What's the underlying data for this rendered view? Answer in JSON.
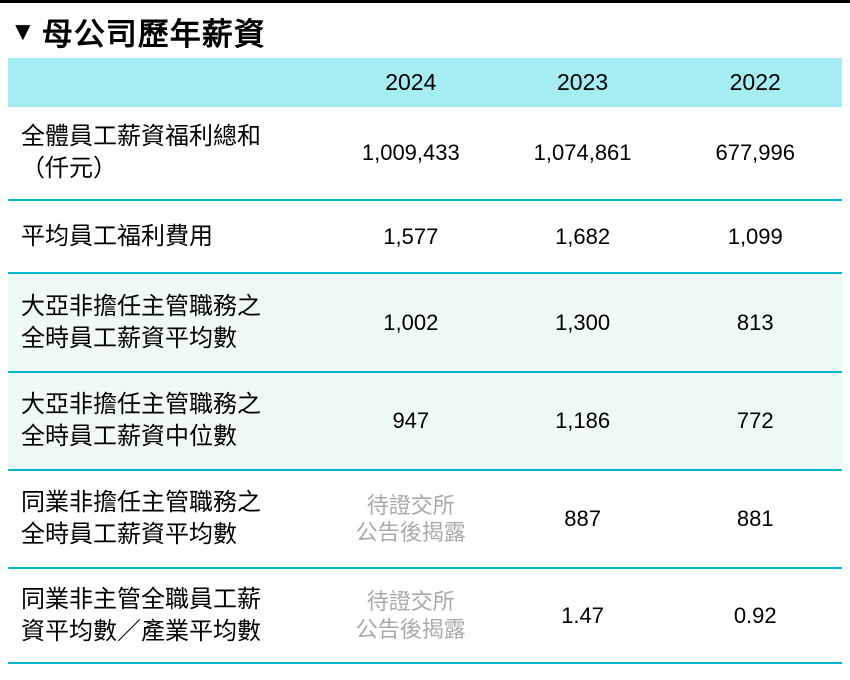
{
  "page": {
    "title_marker": "▼",
    "title": "母公司歷年薪資"
  },
  "table": {
    "columns": [
      "2024",
      "2023",
      "2022"
    ],
    "rows": [
      {
        "label": "全體員工薪資福利總和（仟元）",
        "label_line1": "全體員工薪資福利總和",
        "label_line2": "（仟元）",
        "v2024": "1,009,433",
        "v2023": "1,074,861",
        "v2022": "677,996",
        "shaded": false
      },
      {
        "label": "平均員工福利費用",
        "label_line1": "平均員工福利費用",
        "label_line2": "",
        "v2024": "1,577",
        "v2023": "1,682",
        "v2022": "1,099",
        "shaded": false
      },
      {
        "label": "大亞非擔任主管職務之全時員工薪資平均數",
        "label_line1": "大亞非擔任主管職務之",
        "label_line2": "全時員工薪資平均數",
        "v2024": "1,002",
        "v2023": "1,300",
        "v2022": "813",
        "shaded": true
      },
      {
        "label": "大亞非擔任主管職務之全時員工薪資中位數",
        "label_line1": "大亞非擔任主管職務之",
        "label_line2": "全時員工薪資中位數",
        "v2024": "947",
        "v2023": "1,186",
        "v2022": "772",
        "shaded": true
      },
      {
        "label": "同業非擔任主管職務之全時員工薪資平均數",
        "label_line1": "同業非擔任主管職務之",
        "label_line2": "全時員工薪資平均數",
        "v2024_note_line1": "待證交所",
        "v2024_note_line2": "公告後揭露",
        "v2023": "887",
        "v2022": "881",
        "shaded": false
      },
      {
        "label": "同業非主管全職員工薪資平均數／產業平均數",
        "label_line1": "同業非主管全職員工薪",
        "label_line2": "資平均數／產業平均數",
        "v2024_note_line1": "待證交所",
        "v2024_note_line2": "公告後揭露",
        "v2023": "1.47",
        "v2022": "0.92",
        "shaded": false
      }
    ]
  },
  "colors": {
    "header_bg": "#a5edf2",
    "row_shaded_bg": "#effaf8",
    "divider": "#00b8cd",
    "muted_text": "#a9a9a9",
    "top_rule": "#000000"
  }
}
